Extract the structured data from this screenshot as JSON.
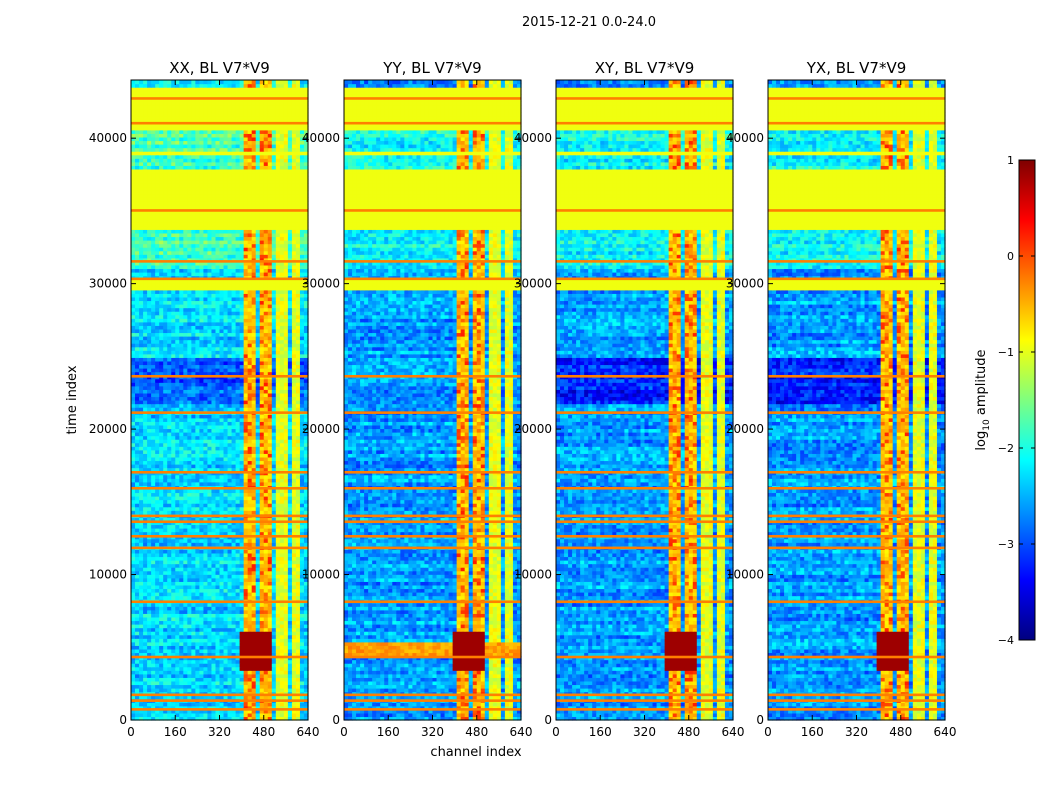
{
  "figure": {
    "title": "2015-12-21 0.0-24.0",
    "xlabel": "channel index",
    "ylabel": "time index"
  },
  "chart_data": {
    "type": "heatmap",
    "panels": [
      {
        "title": "XX, BL V7*V9",
        "polarization": "XX"
      },
      {
        "title": "YY, BL V7*V9",
        "polarization": "YY"
      },
      {
        "title": "XY, BL V7*V9",
        "polarization": "XY"
      },
      {
        "title": "YX, BL V7*V9",
        "polarization": "YX"
      }
    ],
    "x_range": [
      0,
      640
    ],
    "y_range": [
      0,
      44000
    ],
    "x_ticks": [
      0,
      160,
      320,
      480,
      640
    ],
    "x_tick_labels": [
      "0",
      "160",
      "320",
      "480",
      "640"
    ],
    "y_ticks": [
      0,
      10000,
      20000,
      30000,
      40000
    ],
    "y_tick_labels": [
      "0",
      "10000",
      "20000",
      "30000",
      "40000"
    ],
    "colorbar": {
      "label_prefix": "log",
      "label_sub": "10",
      "label_suffix": " amplitude",
      "range": [
        -4,
        1
      ],
      "ticks": [
        -4,
        -3,
        -2,
        -1,
        0,
        1
      ],
      "tick_labels": [
        "−4",
        "−3",
        "−2",
        "−1",
        "0",
        "1"
      ],
      "colormap": [
        "#00007f",
        "#0000ff",
        "#007fff",
        "#00ffff",
        "#7fff7f",
        "#ffff00",
        "#ff7f00",
        "#ff0000",
        "#7f0000"
      ]
    },
    "features": {
      "rfi_channel_bands": [
        [
          405,
          455
        ],
        [
          460,
          505
        ],
        [
          525,
          560
        ],
        [
          580,
          605
        ]
      ],
      "flagged_time_rows": [
        [
          33800,
          38000
        ],
        [
          40500,
          43500
        ],
        [
          29500,
          30200
        ],
        [
          38800,
          39000
        ]
      ],
      "hot_time_rows": [
        700,
        1300,
        1700,
        4300,
        8100,
        11800,
        12600,
        13600,
        14000,
        15900,
        17000,
        21100,
        23600,
        30300,
        31500,
        35000,
        41000,
        42700
      ],
      "dark_time_range": [
        21800,
        25000
      ],
      "hotspot": {
        "time": [
          3500,
          6000
        ],
        "channel": [
          400,
          510
        ]
      }
    }
  }
}
